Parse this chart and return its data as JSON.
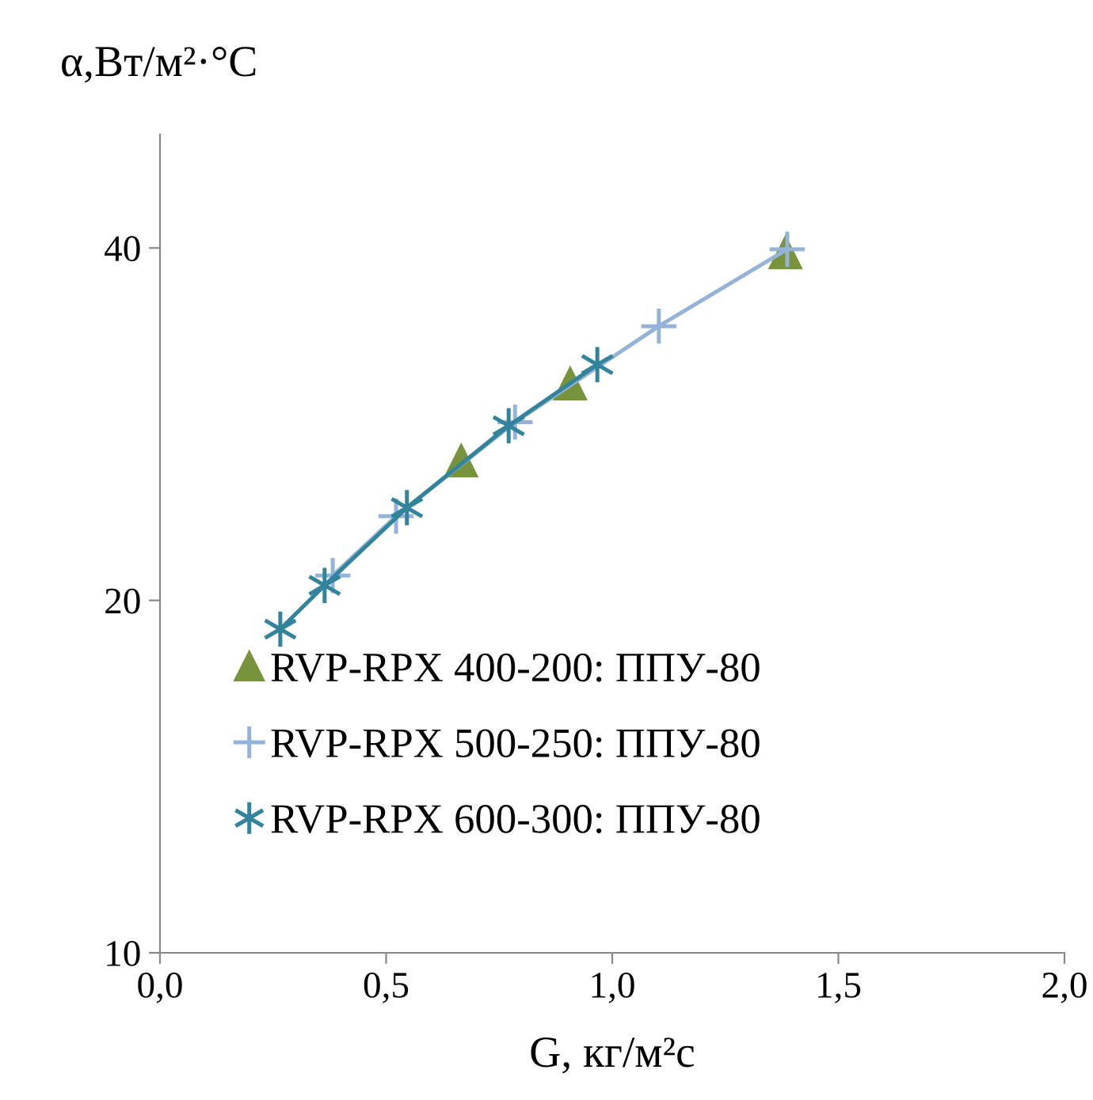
{
  "chart_data": {
    "type": "scatter",
    "xlabel": "G, кг/м²с",
    "ylabel": "α,Вт/м²·°C",
    "log": "y",
    "xlim": [
      0,
      2
    ],
    "ylim": [
      10,
      50
    ],
    "xticks": [
      {
        "value": 0,
        "label": "0,0"
      },
      {
        "value": 0.5,
        "label": "0,5"
      },
      {
        "value": 1,
        "label": "1,0"
      },
      {
        "value": 1.5,
        "label": "1,5"
      },
      {
        "value": 2,
        "label": "2,0"
      }
    ],
    "yticks": [
      10,
      20,
      40
    ],
    "grid": false,
    "legend": "bottom",
    "series": [
      {
        "name": "RVP-RPX 400-200: ППУ-80",
        "marker": "triangle",
        "color": "#77933c",
        "x": [
          0.666,
          0.907,
          1.383
        ],
        "values": [
          26.3,
          30.6,
          39.6
        ]
      },
      {
        "name": "RVP-RPX 500-250: ППУ-80",
        "type": "line",
        "marker": "cross",
        "color": "#95b3d7",
        "x": [
          0.382,
          0.522,
          0.785,
          1.103,
          1.387
        ],
        "values": [
          21.0,
          23.6,
          28.4,
          34.3,
          39.9
        ]
      },
      {
        "name": "RVP-RPX 600-300: ППУ-80",
        "type": "line",
        "marker": "cross",
        "color": "#31849b",
        "x": [
          0.266,
          0.364,
          0.546,
          0.771,
          0.967
        ],
        "values": [
          18.9,
          20.6,
          24.0,
          28.2,
          31.8
        ]
      }
    ]
  }
}
